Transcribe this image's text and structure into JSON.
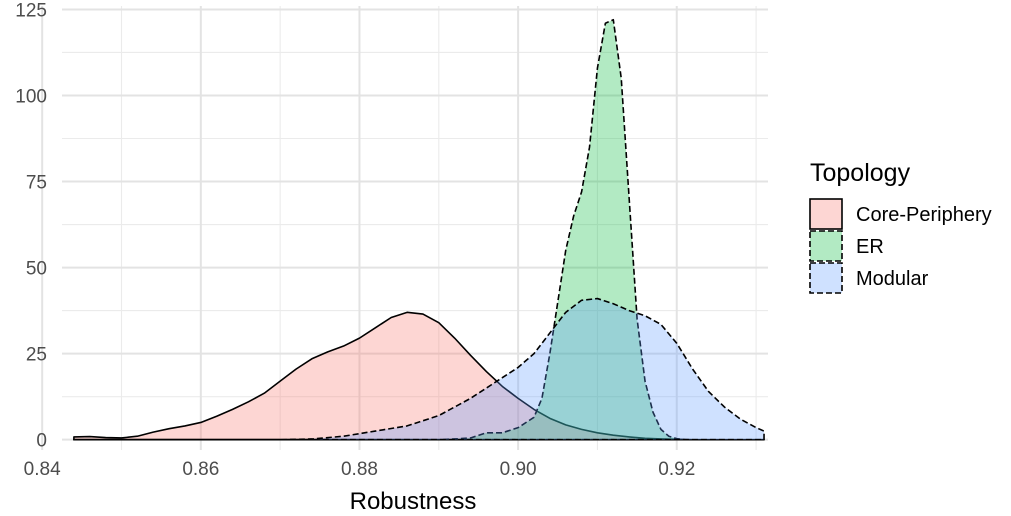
{
  "chart_data": {
    "type": "area",
    "title": "",
    "xlabel": "Robustness",
    "ylabel": "",
    "xlim": [
      0.8425,
      0.9315
    ],
    "ylim": [
      -3,
      126
    ],
    "x_ticks": [
      0.84,
      0.86,
      0.88,
      0.9,
      0.92
    ],
    "x_tick_labels": [
      "0.84",
      "0.86",
      "0.88",
      "0.90",
      "0.92"
    ],
    "y_ticks": [
      0,
      25,
      50,
      75,
      100,
      125
    ],
    "y_tick_labels": [
      "0",
      "25",
      "50",
      "75",
      "100",
      "125"
    ],
    "grid": true,
    "legend": {
      "title": "Topology",
      "position": "right"
    },
    "series": [
      {
        "name": "Core-Periphery",
        "color": "#F8766D",
        "line": "solid",
        "points": [
          [
            0.844,
            0.8
          ],
          [
            0.846,
            0.9
          ],
          [
            0.848,
            0.6
          ],
          [
            0.85,
            0.5
          ],
          [
            0.852,
            1.0
          ],
          [
            0.854,
            2.2
          ],
          [
            0.856,
            3.2
          ],
          [
            0.858,
            4.0
          ],
          [
            0.86,
            5.0
          ],
          [
            0.862,
            6.8
          ],
          [
            0.864,
            8.8
          ],
          [
            0.866,
            11.0
          ],
          [
            0.868,
            13.5
          ],
          [
            0.87,
            17.0
          ],
          [
            0.872,
            20.5
          ],
          [
            0.874,
            23.5
          ],
          [
            0.876,
            25.5
          ],
          [
            0.878,
            27.2
          ],
          [
            0.88,
            29.5
          ],
          [
            0.882,
            32.5
          ],
          [
            0.884,
            35.5
          ],
          [
            0.886,
            37.0
          ],
          [
            0.888,
            36.5
          ],
          [
            0.89,
            34.0
          ],
          [
            0.892,
            29.5
          ],
          [
            0.894,
            24.5
          ],
          [
            0.896,
            19.8
          ],
          [
            0.898,
            15.5
          ],
          [
            0.9,
            12.0
          ],
          [
            0.902,
            8.8
          ],
          [
            0.904,
            6.2
          ],
          [
            0.906,
            4.3
          ],
          [
            0.908,
            3.0
          ],
          [
            0.91,
            2.0
          ],
          [
            0.912,
            1.3
          ],
          [
            0.914,
            0.8
          ],
          [
            0.916,
            0.4
          ],
          [
            0.918,
            0.2
          ],
          [
            0.92,
            0.1
          ],
          [
            0.922,
            0.0
          ],
          [
            0.926,
            0.0
          ],
          [
            0.931,
            0.0
          ]
        ]
      },
      {
        "name": "ER",
        "color": "#00BA38",
        "line": "dashed",
        "points": [
          [
            0.844,
            0.0
          ],
          [
            0.89,
            0.0
          ],
          [
            0.892,
            0.2
          ],
          [
            0.894,
            0.5
          ],
          [
            0.896,
            2.0
          ],
          [
            0.898,
            2.0
          ],
          [
            0.9,
            3.5
          ],
          [
            0.902,
            6.5
          ],
          [
            0.903,
            12.0
          ],
          [
            0.904,
            25.0
          ],
          [
            0.905,
            40.0
          ],
          [
            0.906,
            55.0
          ],
          [
            0.907,
            65.0
          ],
          [
            0.908,
            72.0
          ],
          [
            0.909,
            85.0
          ],
          [
            0.91,
            108.0
          ],
          [
            0.911,
            121.0
          ],
          [
            0.912,
            122.0
          ],
          [
            0.913,
            105.0
          ],
          [
            0.914,
            70.0
          ],
          [
            0.915,
            35.0
          ],
          [
            0.916,
            17.0
          ],
          [
            0.917,
            8.0
          ],
          [
            0.918,
            3.0
          ],
          [
            0.919,
            1.0
          ],
          [
            0.92,
            0.3
          ],
          [
            0.921,
            0.0
          ]
        ]
      },
      {
        "name": "Modular",
        "color": "#619CFF",
        "line": "dashed",
        "points": [
          [
            0.844,
            0.0
          ],
          [
            0.87,
            0.0
          ],
          [
            0.874,
            0.2
          ],
          [
            0.878,
            1.0
          ],
          [
            0.882,
            2.5
          ],
          [
            0.886,
            4.0
          ],
          [
            0.89,
            7.0
          ],
          [
            0.894,
            12.0
          ],
          [
            0.898,
            18.0
          ],
          [
            0.9,
            21.0
          ],
          [
            0.902,
            25.0
          ],
          [
            0.904,
            31.0
          ],
          [
            0.906,
            37.0
          ],
          [
            0.908,
            40.5
          ],
          [
            0.91,
            41.0
          ],
          [
            0.912,
            39.5
          ],
          [
            0.914,
            37.5
          ],
          [
            0.916,
            36.0
          ],
          [
            0.918,
            33.5
          ],
          [
            0.92,
            28.0
          ],
          [
            0.922,
            20.5
          ],
          [
            0.924,
            14.0
          ],
          [
            0.926,
            9.5
          ],
          [
            0.928,
            6.0
          ],
          [
            0.93,
            3.5
          ],
          [
            0.931,
            2.5
          ]
        ]
      }
    ]
  }
}
